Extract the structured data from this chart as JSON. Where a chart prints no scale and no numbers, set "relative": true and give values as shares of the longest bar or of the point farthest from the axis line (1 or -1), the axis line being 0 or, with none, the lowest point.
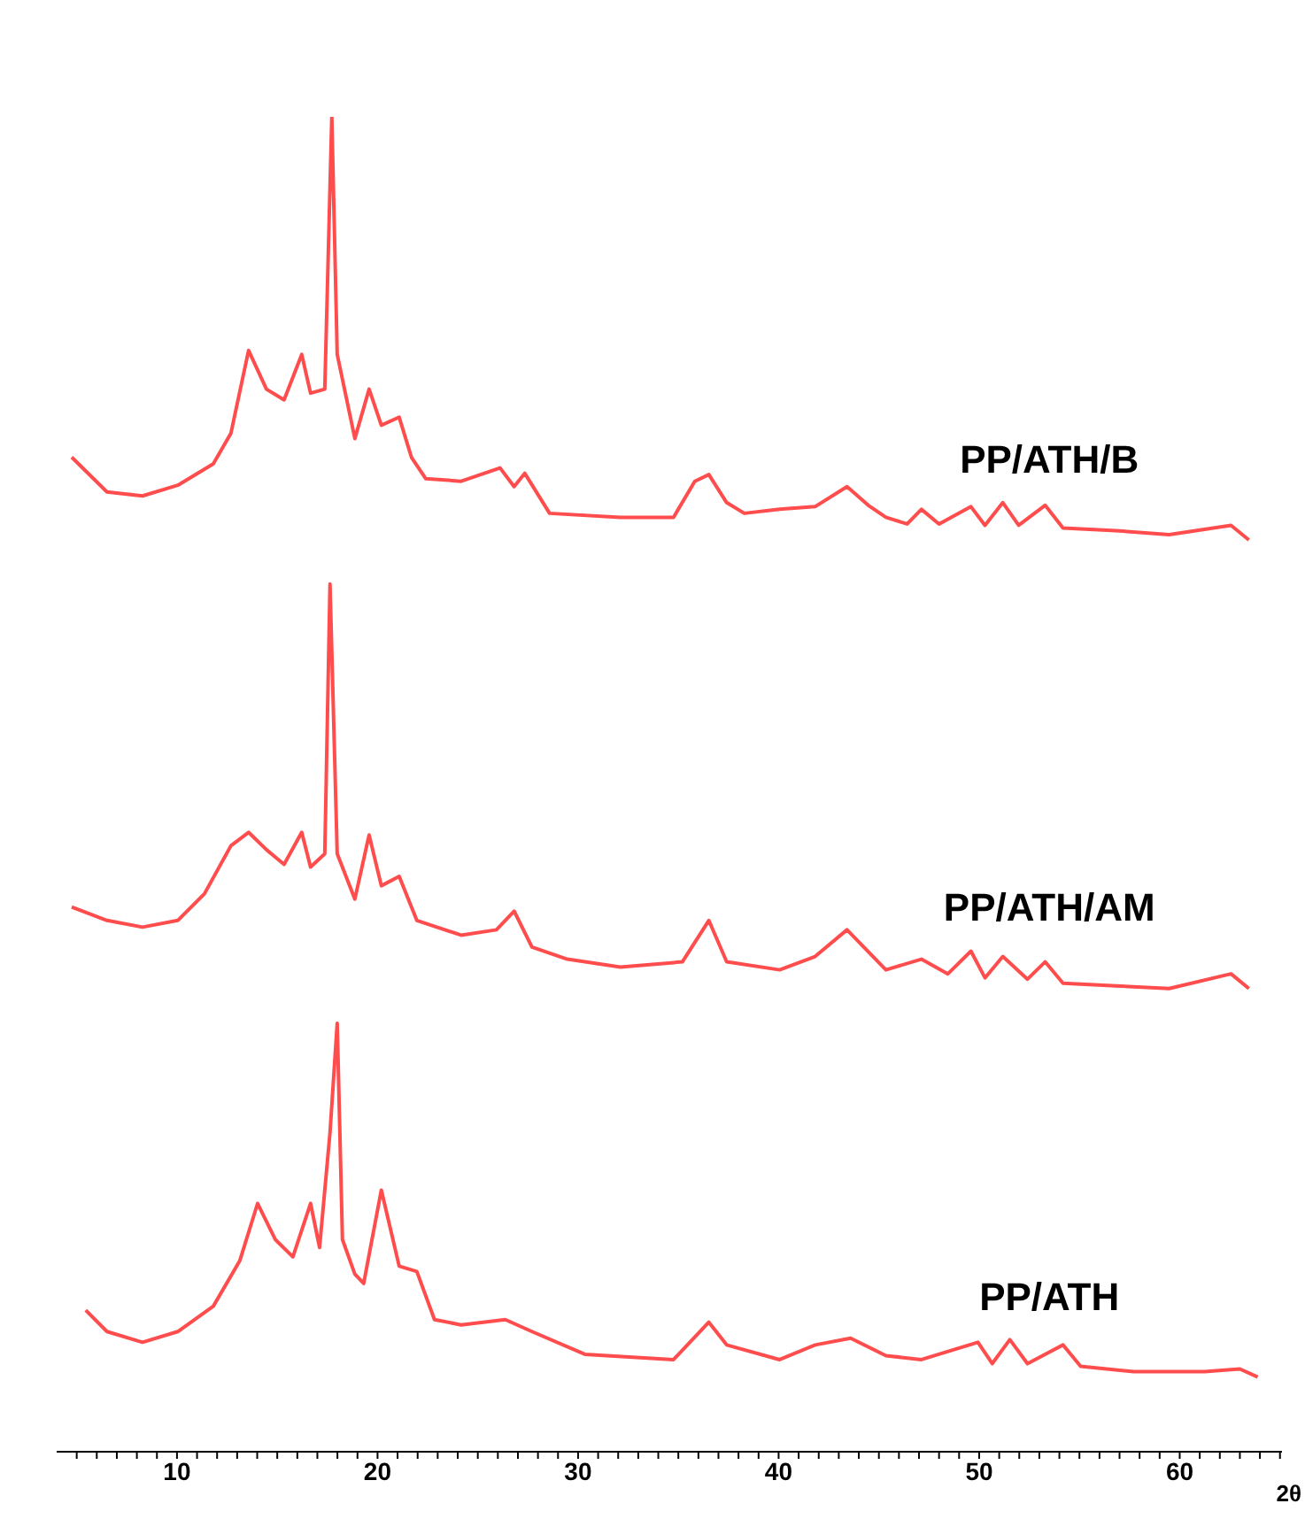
{
  "chart_data": {
    "type": "line",
    "xlabel": "2θ",
    "relative": true,
    "xlim": [
      4,
      65.1
    ],
    "xticks": [
      {
        "value": 5,
        "label": null
      },
      {
        "value": 6,
        "label": null
      },
      {
        "value": 7,
        "label": null
      },
      {
        "value": 8,
        "label": null
      },
      {
        "value": 9,
        "label": null
      },
      10,
      {
        "value": 11,
        "label": null
      },
      {
        "value": 12,
        "label": null
      },
      {
        "value": 13,
        "label": null
      },
      {
        "value": 14,
        "label": null
      },
      {
        "value": 15,
        "label": null
      },
      {
        "value": 16,
        "label": null
      },
      {
        "value": 17,
        "label": null
      },
      {
        "value": 18,
        "label": null
      },
      {
        "value": 19,
        "label": null
      },
      20,
      {
        "value": 21,
        "label": null
      },
      {
        "value": 22,
        "label": null
      },
      {
        "value": 23,
        "label": null
      },
      {
        "value": 24,
        "label": null
      },
      {
        "value": 25,
        "label": null
      },
      {
        "value": 26,
        "label": null
      },
      {
        "value": 27,
        "label": null
      },
      {
        "value": 28,
        "label": null
      },
      {
        "value": 29,
        "label": null
      },
      30,
      {
        "value": 31,
        "label": null
      },
      {
        "value": 32,
        "label": null
      },
      {
        "value": 33,
        "label": null
      },
      {
        "value": 34,
        "label": null
      },
      {
        "value": 35,
        "label": null
      },
      {
        "value": 36,
        "label": null
      },
      {
        "value": 37,
        "label": null
      },
      {
        "value": 38,
        "label": null
      },
      {
        "value": 39,
        "label": null
      },
      40,
      {
        "value": 41,
        "label": null
      },
      {
        "value": 42,
        "label": null
      },
      {
        "value": 43,
        "label": null
      },
      {
        "value": 44,
        "label": null
      },
      {
        "value": 45,
        "label": null
      },
      {
        "value": 46,
        "label": null
      },
      {
        "value": 47,
        "label": null
      },
      {
        "value": 48,
        "label": null
      },
      {
        "value": 49,
        "label": null
      },
      50,
      {
        "value": 51,
        "label": null
      },
      {
        "value": 52,
        "label": null
      },
      {
        "value": 53,
        "label": null
      },
      {
        "value": 54,
        "label": null
      },
      {
        "value": 55,
        "label": null
      },
      {
        "value": 56,
        "label": null
      },
      {
        "value": 57,
        "label": null
      },
      {
        "value": 58,
        "label": null
      },
      {
        "value": 59,
        "label": null
      },
      60,
      {
        "value": 61,
        "label": null
      },
      {
        "value": 62,
        "label": null
      },
      {
        "value": 63,
        "label": null
      },
      {
        "value": 64,
        "label": null
      },
      {
        "value": 65,
        "label": null
      }
    ],
    "tick_labels": "x",
    "marker": "none",
    "line_style": "solid",
    "series": [
      {
        "name": "PP/ATH/B",
        "color": "#ff4d4d",
        "x": [
          4.75,
          6.51,
          8.28,
          10.04,
          11.81,
          12.69,
          13.57,
          14.46,
          15.34,
          16.22,
          16.66,
          17.37,
          17.72,
          17.99,
          18.87,
          19.58,
          20.19,
          21.08,
          21.69,
          22.4,
          24.17,
          26.11,
          26.81,
          27.34,
          28.58,
          32.11,
          34.76,
          35.82,
          36.52,
          37.41,
          38.29,
          40.05,
          41.82,
          43.41,
          44.47,
          45.35,
          46.41,
          47.12,
          48,
          49.59,
          50.29,
          51.18,
          51.97,
          53.29,
          54.18,
          56.82,
          59.47,
          62.56,
          63.45
        ],
        "values": [
          0.745,
          0.719,
          0.716,
          0.724,
          0.74,
          0.763,
          0.825,
          0.796,
          0.788,
          0.822,
          0.793,
          0.796,
          1,
          0.822,
          0.759,
          0.796,
          0.769,
          0.775,
          0.745,
          0.729,
          0.727,
          0.737,
          0.723,
          0.733,
          0.703,
          0.7,
          0.7,
          0.727,
          0.732,
          0.711,
          0.703,
          0.706,
          0.708,
          0.723,
          0.709,
          0.7,
          0.695,
          0.706,
          0.695,
          0.708,
          0.694,
          0.711,
          0.694,
          0.709,
          0.692,
          0.69,
          0.687,
          0.694,
          0.683
        ]
      },
      {
        "name": "PP/ATH/AM",
        "color": "#ff4d4d",
        "x": [
          4.75,
          6.51,
          8.28,
          10.04,
          11.37,
          12.69,
          13.57,
          14.46,
          15.34,
          16.22,
          16.66,
          17.37,
          17.63,
          17.99,
          18.87,
          19.58,
          20.19,
          21.08,
          21.96,
          24.17,
          25.93,
          26.81,
          27.7,
          29.46,
          32.11,
          35.2,
          36.52,
          37.41,
          40.05,
          41.82,
          43.41,
          45.35,
          47.12,
          48.44,
          49.59,
          50.29,
          51.18,
          52.41,
          53.29,
          54.18,
          56.82,
          59.47,
          62.56,
          63.45
        ],
        "values": [
          0.408,
          0.398,
          0.393,
          0.398,
          0.418,
          0.454,
          0.464,
          0.451,
          0.44,
          0.464,
          0.438,
          0.448,
          0.65,
          0.448,
          0.414,
          0.462,
          0.424,
          0.431,
          0.398,
          0.387,
          0.391,
          0.405,
          0.378,
          0.369,
          0.363,
          0.367,
          0.398,
          0.367,
          0.361,
          0.371,
          0.391,
          0.361,
          0.369,
          0.358,
          0.375,
          0.355,
          0.371,
          0.354,
          0.367,
          0.351,
          0.349,
          0.347,
          0.358,
          0.347
        ]
      },
      {
        "name": "PP/ATH",
        "color": "#ff4d4d",
        "x": [
          5.45,
          6.51,
          8.28,
          10.04,
          11.81,
          13.13,
          14.02,
          14.9,
          15.78,
          16.66,
          17.11,
          17.63,
          17.99,
          18.25,
          18.87,
          19.31,
          20.19,
          21.08,
          21.96,
          22.84,
          24.17,
          26.37,
          27.7,
          30.34,
          34.76,
          36.52,
          37.41,
          40.05,
          41.82,
          43.59,
          45.35,
          47.12,
          49.94,
          50.65,
          51.53,
          52.41,
          54.18,
          55.06,
          57.7,
          61.24,
          63,
          63.89
        ],
        "values": [
          0.106,
          0.09,
          0.082,
          0.09,
          0.109,
          0.143,
          0.186,
          0.159,
          0.146,
          0.186,
          0.153,
          0.239,
          0.321,
          0.159,
          0.133,
          0.126,
          0.196,
          0.139,
          0.135,
          0.099,
          0.095,
          0.099,
          0.09,
          0.073,
          0.069,
          0.097,
          0.08,
          0.069,
          0.08,
          0.085,
          0.072,
          0.069,
          0.082,
          0.066,
          0.084,
          0.066,
          0.08,
          0.064,
          0.06,
          0.06,
          0.062,
          0.056
        ]
      }
    ]
  }
}
